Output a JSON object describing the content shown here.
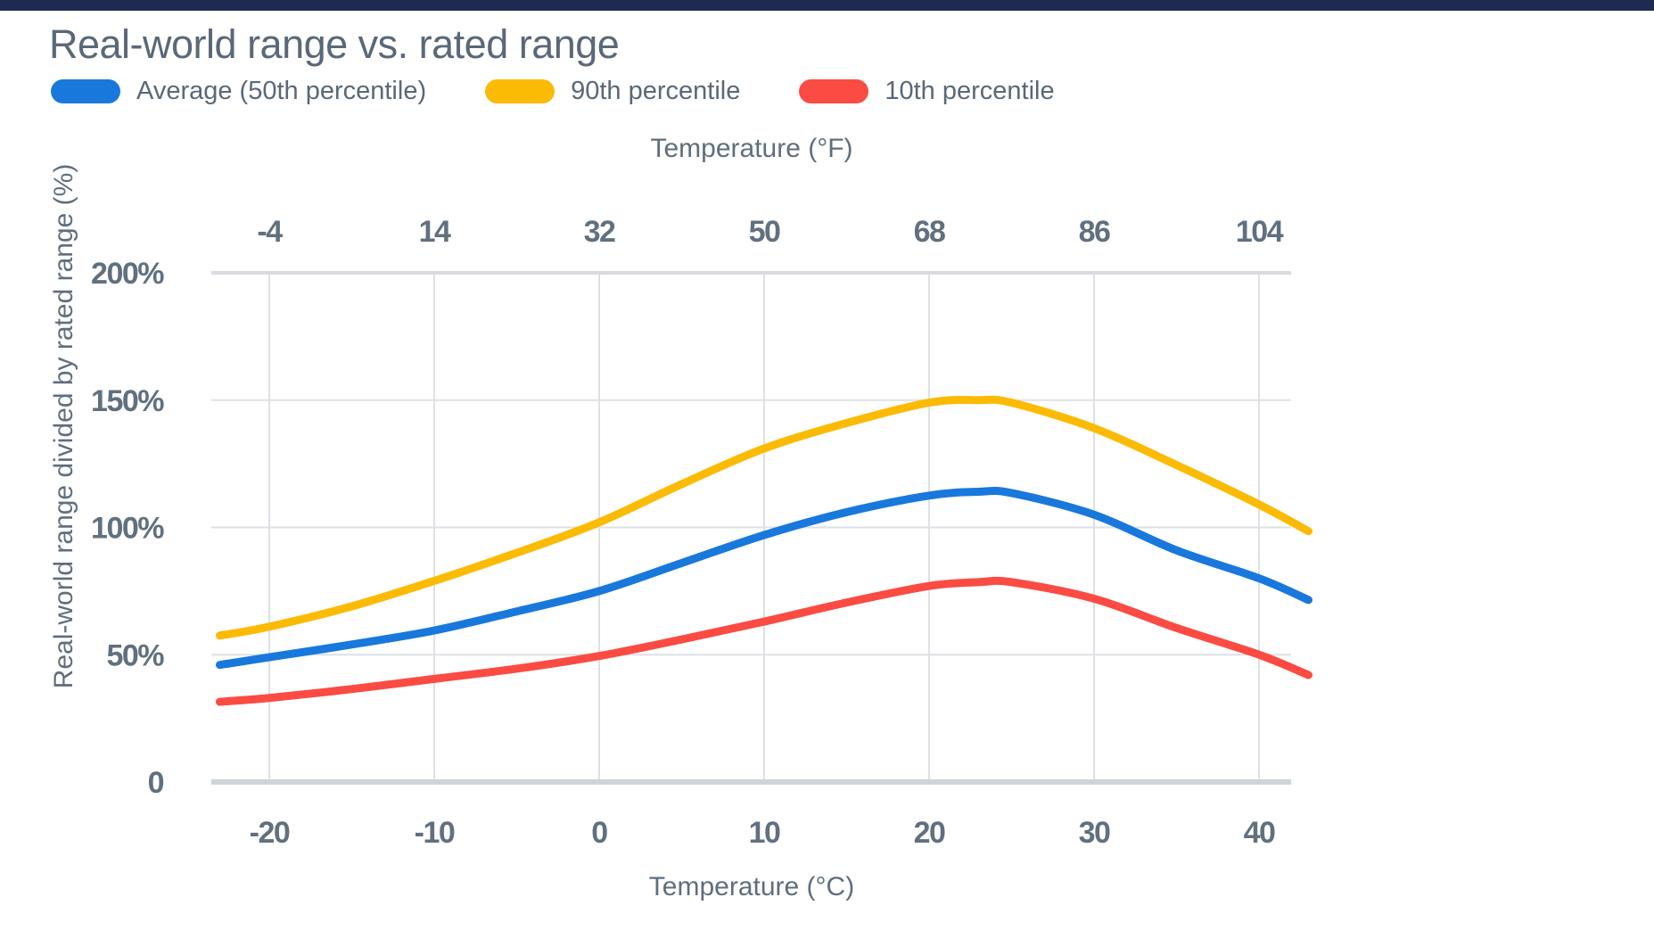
{
  "header": {
    "title": "Real-world range vs. rated range"
  },
  "legend": {
    "items": [
      {
        "label": "Average (50th percentile)",
        "color": "#1878dc"
      },
      {
        "label": "90th percentile",
        "color": "#fbbb04"
      },
      {
        "label": "10th percentile",
        "color": "#fb4b42"
      }
    ]
  },
  "chart_data": {
    "type": "line",
    "title": "Real-world range vs. rated range",
    "xlabel_top": "Temperature (°F)",
    "xlabel_bottom": "Temperature (°C)",
    "ylabel": "Real-world range divided by rated range (%)",
    "x_ticks_c": [
      "-20",
      "-10",
      "0",
      "10",
      "20",
      "30",
      "40"
    ],
    "x_ticks_f": [
      "-4",
      "14",
      "32",
      "50",
      "68",
      "86",
      "104"
    ],
    "x_tick_values": [
      -20,
      -10,
      0,
      10,
      20,
      30,
      40
    ],
    "y_ticks": [
      "0",
      "50%",
      "100%",
      "150%",
      "200%"
    ],
    "y_tick_values": [
      0,
      50,
      100,
      150,
      200
    ],
    "xlim_c": [
      -23.3,
      43.2
    ],
    "ylim": [
      0,
      200
    ],
    "grid": true,
    "legend_position": "top-left",
    "x": [
      -23,
      -20,
      -15,
      -10,
      -5,
      0,
      5,
      10,
      15,
      20,
      23,
      25,
      30,
      35,
      40,
      43
    ],
    "series": [
      {
        "name": "Average (50th percentile)",
        "color": "#1878dc",
        "values": [
          46,
          49,
          54,
          59.5,
          67,
          75,
          86,
          97,
          106,
          112.5,
          114,
          113.5,
          105,
          91,
          80,
          71.5
        ]
      },
      {
        "name": "90th percentile",
        "color": "#fbbb04",
        "values": [
          57.5,
          61,
          69,
          79,
          90,
          102,
          117,
          131,
          141,
          149,
          150,
          149,
          139,
          124.5,
          109,
          98.5
        ]
      },
      {
        "name": "10th percentile",
        "color": "#fb4b42",
        "values": [
          31.5,
          33,
          36.5,
          40.5,
          44.5,
          49.5,
          56,
          63,
          70.5,
          77,
          78.5,
          78.5,
          72,
          60.5,
          50,
          42
        ]
      }
    ],
    "colors": {
      "grid": "#dde1e6",
      "axis": "#cfd4da",
      "text": "#5f6e7d"
    }
  }
}
